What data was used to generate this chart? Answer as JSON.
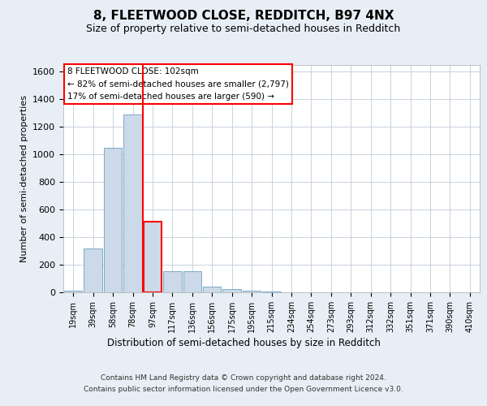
{
  "title": "8, FLEETWOOD CLOSE, REDDITCH, B97 4NX",
  "subtitle": "Size of property relative to semi-detached houses in Redditch",
  "xlabel": "Distribution of semi-detached houses by size in Redditch",
  "ylabel": "Number of semi-detached properties",
  "categories": [
    "19sqm",
    "39sqm",
    "58sqm",
    "78sqm",
    "97sqm",
    "117sqm",
    "136sqm",
    "156sqm",
    "175sqm",
    "195sqm",
    "215sqm",
    "234sqm",
    "254sqm",
    "273sqm",
    "293sqm",
    "312sqm",
    "332sqm",
    "351sqm",
    "371sqm",
    "390sqm",
    "410sqm"
  ],
  "values": [
    10,
    320,
    1050,
    1290,
    510,
    155,
    155,
    40,
    25,
    10,
    5,
    2,
    2,
    1,
    1,
    0,
    0,
    0,
    0,
    0,
    0
  ],
  "bar_color": "#ccd9e8",
  "bar_edge_color": "#7aaac8",
  "highlight_bar_index": 4,
  "highlight_edge_color": "red",
  "vline_color": "red",
  "ylim": [
    0,
    1650
  ],
  "yticks": [
    0,
    200,
    400,
    600,
    800,
    1000,
    1200,
    1400,
    1600
  ],
  "annotation_title": "8 FLEETWOOD CLOSE: 102sqm",
  "annotation_line1": "← 82% of semi-detached houses are smaller (2,797)",
  "annotation_line2": "17% of semi-detached houses are larger (590) →",
  "annotation_box_color": "white",
  "annotation_box_edge": "red",
  "footer1": "Contains HM Land Registry data © Crown copyright and database right 2024.",
  "footer2": "Contains public sector information licensed under the Open Government Licence v3.0.",
  "bg_color": "#e8eef5",
  "plot_bg_color": "white",
  "grid_color": "#c0ccd8"
}
